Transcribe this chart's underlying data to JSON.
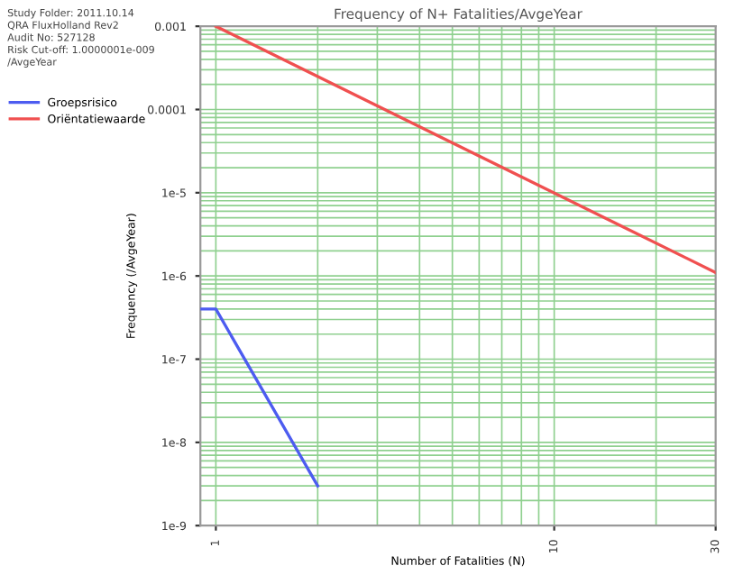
{
  "chart_data": {
    "type": "line",
    "title": "Frequency of N+ Fatalities/AvgeYear",
    "xlabel": "Number of Fatalities (N)",
    "ylabel": "Frequency (/AvgeYear)",
    "annotations": [
      "Study Folder: 2011.10.14",
      "QRA FluxHolland Rev2",
      "Audit No: 527128",
      "Risk Cut-off: 1.0000001e-009",
      "/AvgeYear"
    ],
    "log": "xy",
    "xlim": [
      0.9,
      30
    ],
    "xticks": [
      1,
      10,
      30
    ],
    "ylim": [
      1e-09,
      0.001
    ],
    "yticks": [
      {
        "value": 1e-09,
        "label": "1e-9"
      },
      {
        "value": 1e-08,
        "label": "1e-8"
      },
      {
        "value": 1e-07,
        "label": "1e-7"
      },
      {
        "value": 1e-06,
        "label": "1e-6"
      },
      {
        "value": 1e-05,
        "label": "1e-5"
      },
      {
        "value": 0.0001,
        "label": "0.0001"
      },
      {
        "value": 0.001,
        "label": "0.001"
      }
    ],
    "grid": true,
    "legend": "left",
    "marker": "none",
    "line_style": "solid",
    "series": [
      {
        "name": "Groepsrisico",
        "color": "#4d5cf0",
        "x": [
          0.9,
          1,
          2
        ],
        "values": [
          4e-07,
          4e-07,
          3e-09
        ]
      },
      {
        "name": "Oriëntatiewaarde",
        "color": "#f05050",
        "x": [
          1,
          30
        ],
        "values": [
          0.001,
          1.1e-06
        ]
      }
    ]
  }
}
